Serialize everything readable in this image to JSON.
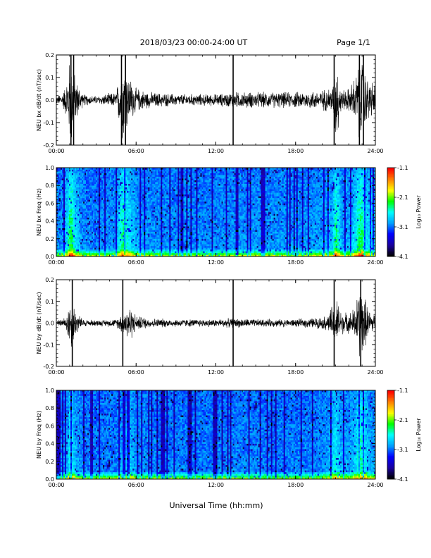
{
  "header": {
    "title": "2018/03/23  00:00-24:00 UT",
    "page": "Page 1/1"
  },
  "xlabel": "Universal Time (hh:mm)",
  "colors": {
    "trace": "#000000",
    "colormap": [
      "#000000",
      "#1a00a0",
      "#0000ff",
      "#00a0ff",
      "#00ffff",
      "#00ff00",
      "#ffff00",
      "#ff8000",
      "#ff0000"
    ]
  },
  "chart_data": [
    {
      "type": "line",
      "ylabel": "NEU bx dB/dt (nT/sec)",
      "xlim": [
        0,
        24
      ],
      "ylim": [
        -0.2,
        0.2
      ],
      "x_tick_labels": [
        "00:00",
        "06:00",
        "12:00",
        "18:00",
        "24:00"
      ],
      "y_tick_labels": [
        "-0.2",
        "-0.1",
        "0.0",
        "0.1",
        "0.2"
      ],
      "envelope": {
        "x_hours": [
          0,
          0.5,
          0.8,
          1.0,
          1.2,
          1.4,
          2.0,
          3.0,
          4.5,
          4.8,
          5.0,
          5.5,
          6.0,
          7.0,
          9.0,
          12.0,
          13.5,
          15.0,
          18.0,
          20.0,
          20.8,
          21.0,
          21.5,
          22.0,
          22.5,
          22.8,
          23.0,
          23.3,
          24.0
        ],
        "amplitude": [
          0.02,
          0.04,
          0.1,
          0.22,
          0.22,
          0.12,
          0.03,
          0.02,
          0.04,
          0.15,
          0.22,
          0.12,
          0.06,
          0.04,
          0.03,
          0.03,
          0.04,
          0.04,
          0.04,
          0.05,
          0.07,
          0.22,
          0.05,
          0.06,
          0.12,
          0.22,
          0.22,
          0.12,
          0.08
        ]
      },
      "spikes_hours": [
        1.1,
        1.3,
        4.9,
        5.2,
        13.3,
        20.9,
        22.8,
        23.1
      ]
    },
    {
      "type": "heatmap",
      "ylabel": "NEU bx Freq (Hz)",
      "colorbar_label": "Log₁₀ Power",
      "xlim": [
        0,
        24
      ],
      "ylim": [
        0,
        1.0
      ],
      "clim": [
        -4.1,
        -1.1
      ],
      "x_tick_labels": [
        "00:00",
        "06:00",
        "12:00",
        "18:00",
        "24:00"
      ],
      "y_tick_labels": [
        "0.0",
        "0.2",
        "0.4",
        "0.6",
        "0.8",
        "1.0"
      ],
      "colorbar_tick_labels": [
        "-4.1",
        "-3.1",
        "-2.1",
        "-1.1"
      ]
    },
    {
      "type": "line",
      "ylabel": "NEU by dB/dt (nT/sec)",
      "xlim": [
        0,
        24
      ],
      "ylim": [
        -0.2,
        0.2
      ],
      "x_tick_labels": [
        "00:00",
        "06:00",
        "12:00",
        "18:00",
        "24:00"
      ],
      "y_tick_labels": [
        "-0.2",
        "-0.1",
        "0.0",
        "0.1",
        "0.2"
      ],
      "envelope": {
        "x_hours": [
          0,
          0.5,
          0.8,
          1.0,
          1.2,
          1.5,
          2.0,
          3.0,
          4.5,
          5.0,
          5.5,
          6.0,
          7.0,
          9.0,
          12.0,
          13.3,
          15.0,
          18.0,
          20.0,
          20.5,
          21.0,
          21.5,
          22.0,
          22.5,
          22.8,
          23.0,
          23.5,
          24.0
        ],
        "amplitude": [
          0.015,
          0.02,
          0.05,
          0.14,
          0.12,
          0.06,
          0.02,
          0.015,
          0.02,
          0.06,
          0.1,
          0.04,
          0.025,
          0.02,
          0.02,
          0.025,
          0.02,
          0.02,
          0.03,
          0.05,
          0.14,
          0.06,
          0.05,
          0.09,
          0.2,
          0.18,
          0.07,
          0.05
        ]
      },
      "spikes_hours": [
        1.2,
        5.0,
        13.3,
        20.9,
        22.9
      ]
    },
    {
      "type": "heatmap",
      "ylabel": "NEU by Freq (Hz)",
      "colorbar_label": "Log₁₀ Power",
      "xlim": [
        0,
        24
      ],
      "ylim": [
        0,
        1.0
      ],
      "clim": [
        -4.1,
        -1.1
      ],
      "x_tick_labels": [
        "00:00",
        "06:00",
        "12:00",
        "18:00",
        "24:00"
      ],
      "y_tick_labels": [
        "0.0",
        "0.2",
        "0.4",
        "0.6",
        "0.8",
        "1.0"
      ],
      "colorbar_tick_labels": [
        "-4.1",
        "-3.1",
        "-2.1",
        "-1.1"
      ]
    }
  ]
}
